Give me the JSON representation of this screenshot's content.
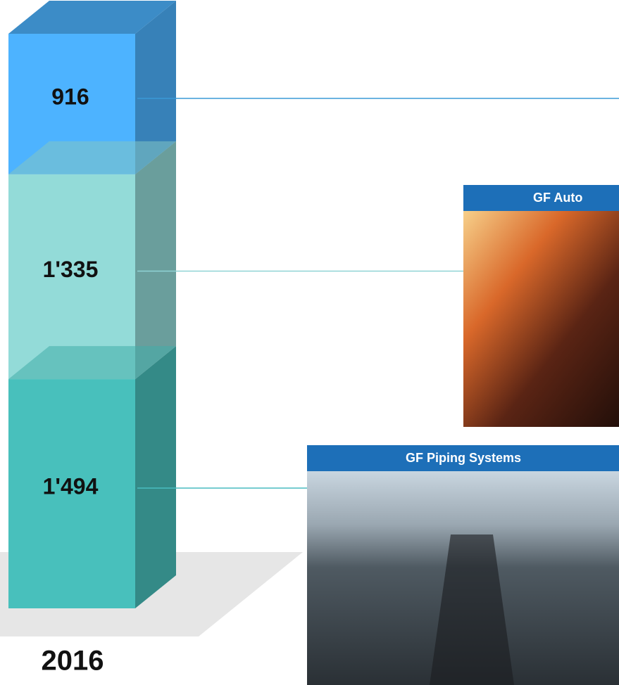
{
  "chart_data": {
    "type": "bar",
    "stacked": true,
    "categories": [
      "2016"
    ],
    "series": [
      {
        "color": "#48c0bc",
        "values": [
          1494
        ],
        "value_labels": [
          "1'494"
        ]
      },
      {
        "color": "#93dbd8",
        "values": [
          1335
        ],
        "value_labels": [
          "1'335"
        ]
      },
      {
        "color": "#4db3ff",
        "values": [
          916
        ],
        "value_labels": [
          "916"
        ]
      }
    ]
  },
  "panels": [
    {
      "title": "GF Auto"
    },
    {
      "title": "GF Piping Systems"
    }
  ]
}
